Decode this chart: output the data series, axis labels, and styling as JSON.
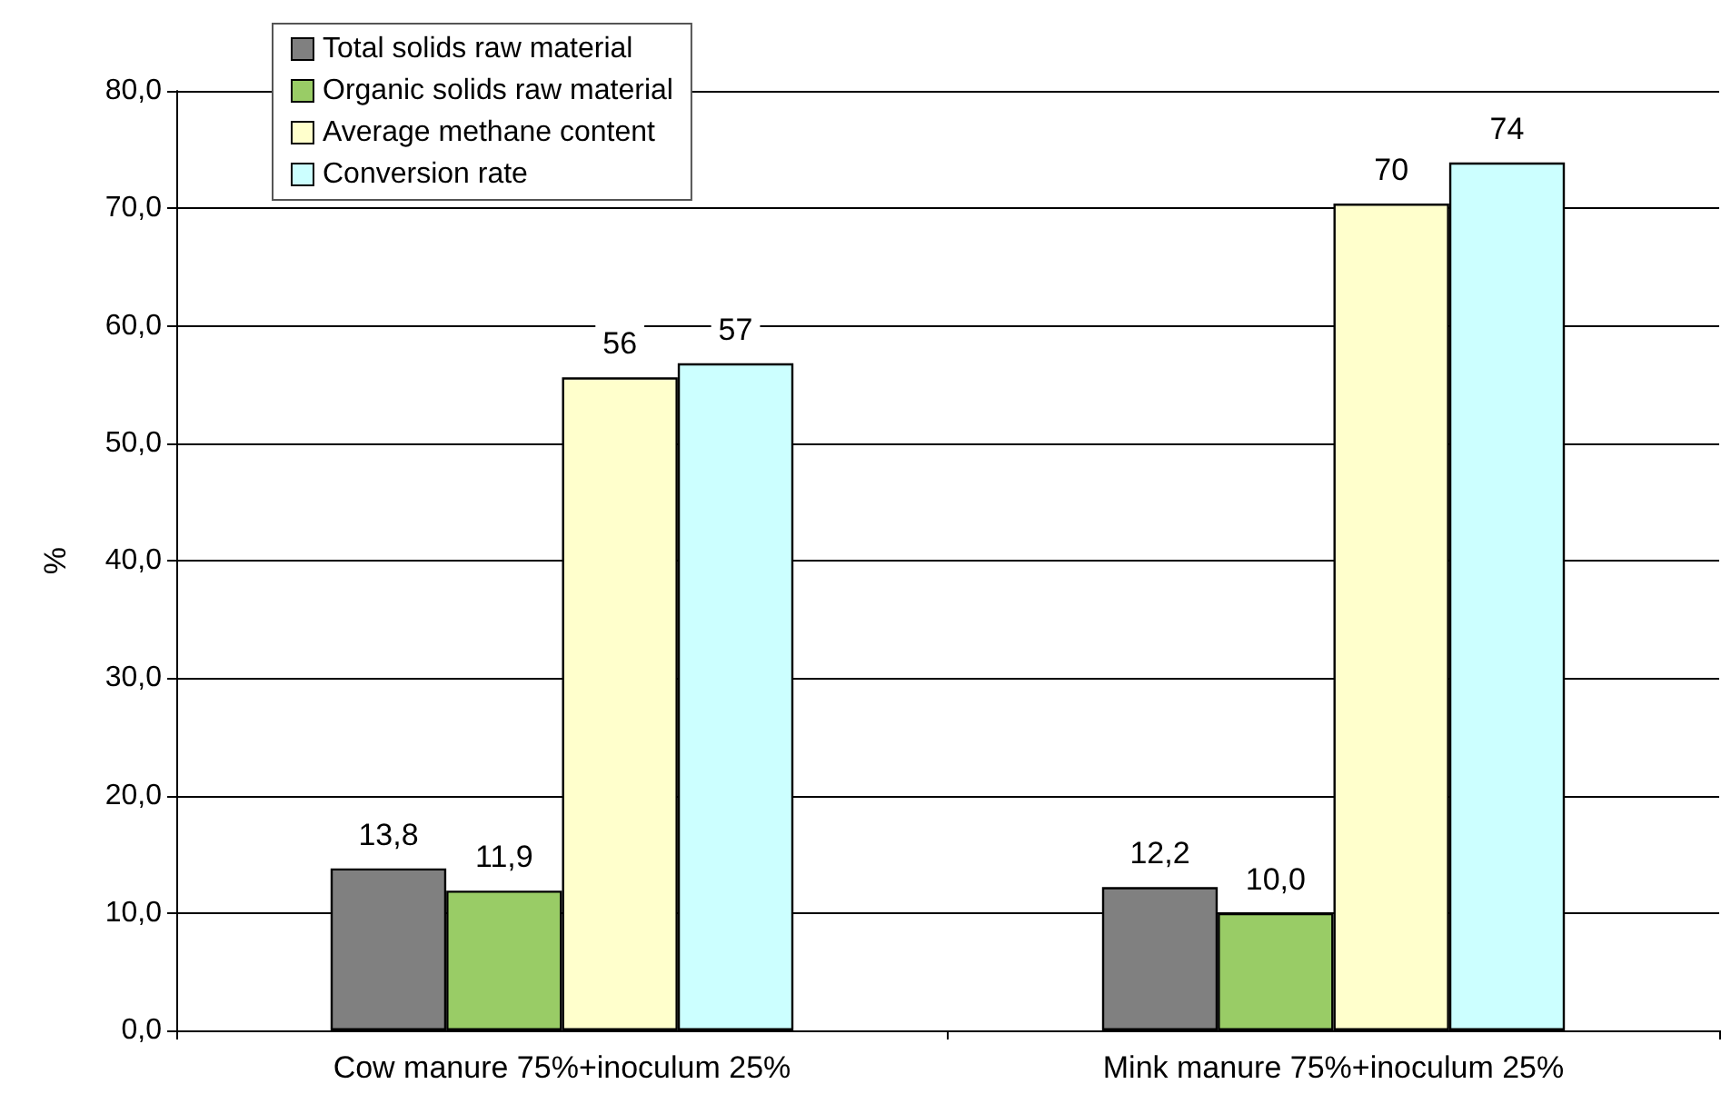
{
  "chart_data": {
    "type": "bar",
    "ylabel": "%",
    "categories": [
      "Cow manure 75%+inoculum 25%",
      "Mink manure 75%+inoculum 25%"
    ],
    "series": [
      {
        "name": "Total solids raw material",
        "color": "#808080",
        "values": [
          13.8,
          12.2
        ],
        "value_labels": [
          "13,8",
          "12,2"
        ]
      },
      {
        "name": "Organic solids raw material",
        "color": "#99cc66",
        "values": [
          11.9,
          10.0
        ],
        "value_labels": [
          "11,9",
          "10,0"
        ]
      },
      {
        "name": "Average methane content",
        "color": "#ffffcc",
        "values": [
          55.6,
          70.4
        ],
        "value_labels": [
          "56",
          "70"
        ]
      },
      {
        "name": "Conversion rate",
        "color": "#ccffff",
        "values": [
          56.8,
          73.9
        ],
        "value_labels": [
          "57",
          "74"
        ]
      }
    ],
    "ylim": [
      0,
      80
    ],
    "yticks": [
      {
        "value": 0,
        "label": "0,0"
      },
      {
        "value": 10,
        "label": "10,0"
      },
      {
        "value": 20,
        "label": "20,0"
      },
      {
        "value": 30,
        "label": "30,0"
      },
      {
        "value": 40,
        "label": "40,0"
      },
      {
        "value": 50,
        "label": "50,0"
      },
      {
        "value": 60,
        "label": "60,0"
      },
      {
        "value": 70,
        "label": "70,0"
      },
      {
        "value": 80,
        "label": "80,0"
      }
    ],
    "grid": "y",
    "legend": "top left"
  }
}
